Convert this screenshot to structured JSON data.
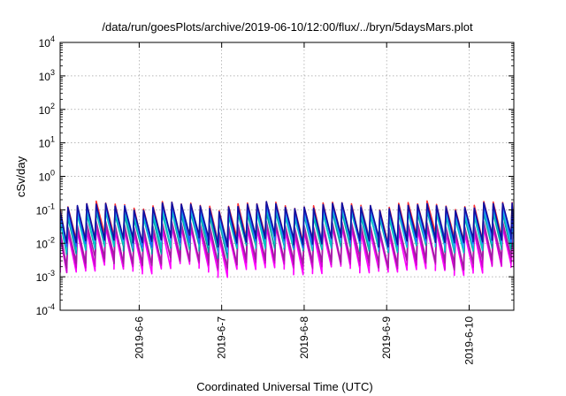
{
  "chart_data": {
    "type": "line",
    "title": "/data/run/goesPlots/archive/2019-06-10/12:00/flux/../bryn/5daysMars.plot",
    "xlabel": "Coordinated Universal Time (UTC)",
    "ylabel": "cSv/day",
    "yscale": "log",
    "ylim": [
      0.0001,
      10000
    ],
    "xlim": [
      "2019-06-05T01:00",
      "2019-06-10T13:00"
    ],
    "grid": true,
    "legend": "none",
    "y_ticks": [
      {
        "base": "10",
        "exp": "4"
      },
      {
        "base": "10",
        "exp": "3"
      },
      {
        "base": "10",
        "exp": "2"
      },
      {
        "base": "10",
        "exp": "1"
      },
      {
        "base": "10",
        "exp": "0"
      },
      {
        "base": "10",
        "exp": "-1"
      },
      {
        "base": "10",
        "exp": "-2"
      },
      {
        "base": "10",
        "exp": "-3"
      },
      {
        "base": "10",
        "exp": "-4"
      }
    ],
    "x_ticks": [
      "2019-6-6",
      "2019-6-7",
      "2019-6-8",
      "2019-6-9",
      "2019-6-10"
    ],
    "series_style": {
      "colors": [
        "#ff00ff",
        "#d000d0",
        "#a020a0",
        "#ff3030",
        "#00a0a0",
        "#00c8c8",
        "#30a0ff",
        "#2060ff",
        "#1010a0"
      ],
      "cycle_hours": 2.75,
      "start_date": "2019-06-05T01:00",
      "end_date": "2019-06-10T13:00"
    },
    "series": [
      {
        "color": "#ff00ff",
        "peak": 0.02,
        "trough": 0.0015
      },
      {
        "color": "#d000d0",
        "peak": 0.025,
        "trough": 0.002
      },
      {
        "color": "#a020a0",
        "peak": 0.03,
        "trough": 0.0025
      },
      {
        "color": "#ff3030",
        "peak": 0.12,
        "trough": 0.012
      },
      {
        "color": "#00a0a0",
        "peak": 0.06,
        "trough": 0.006
      },
      {
        "color": "#00c8c8",
        "peak": 0.07,
        "trough": 0.007
      },
      {
        "color": "#30a0ff",
        "peak": 0.09,
        "trough": 0.009
      },
      {
        "color": "#2060ff",
        "peak": 0.1,
        "trough": 0.01
      },
      {
        "color": "#1010a0",
        "peak": 0.11,
        "trough": 0.011
      }
    ]
  }
}
